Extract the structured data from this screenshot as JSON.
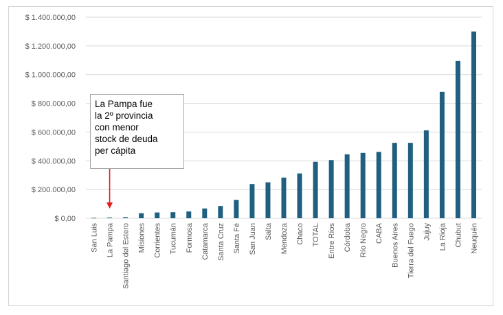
{
  "chart_data": {
    "type": "bar",
    "title": "",
    "xlabel": "",
    "ylabel": "",
    "ylim": [
      0,
      1400000
    ],
    "grid": true,
    "colors": {
      "bar": "#1f5f7f",
      "grid": "#d9d9d9",
      "annotation_arrow": "#e21b1b"
    },
    "y_ticks": [
      {
        "value": 0,
        "label": "$ 0,00"
      },
      {
        "value": 200000,
        "label": "$ 200.000,00"
      },
      {
        "value": 400000,
        "label": "$ 400.000,00"
      },
      {
        "value": 600000,
        "label": "$ 600.000,00"
      },
      {
        "value": 800000,
        "label": "$ 800.000,00"
      },
      {
        "value": 1000000,
        "label": "$ 1.000.000,00"
      },
      {
        "value": 1200000,
        "label": "$ 1.200.000,00"
      },
      {
        "value": 1400000,
        "label": "$ 1.400.000,00"
      }
    ],
    "categories": [
      "San Luis",
      "La Pampa",
      "Santiago del Estero",
      "Misiones",
      "Corrientes",
      "Tucumán",
      "Formosa",
      "Catamarca",
      "Santa Cruz",
      "Santa Fé",
      "San Juan",
      "Salta",
      "Mendoza",
      "Chaco",
      "TOTAL",
      "Entre Ríos",
      "Córdoba",
      "Río Negro",
      "CABA",
      "Buenos Aires",
      "Tierra del Fuego",
      "Jujuy",
      "La Rioja",
      "Chubut",
      "Neuquén"
    ],
    "values": [
      3000,
      5000,
      7000,
      35000,
      40000,
      42000,
      47000,
      68000,
      85000,
      128000,
      238000,
      250000,
      283000,
      312000,
      393000,
      405000,
      445000,
      455000,
      462000,
      525000,
      525000,
      612000,
      880000,
      1095000,
      1300000
    ],
    "annotations": [
      {
        "text": "La Pampa fue\nla 2º provincia\ncon menor\nstock de deuda\nper cápita",
        "target_category": "La Pampa"
      }
    ]
  }
}
